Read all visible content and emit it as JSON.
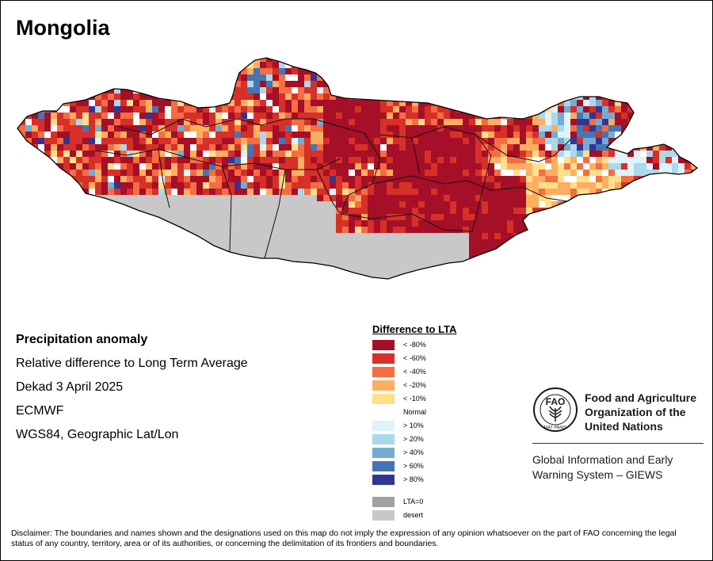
{
  "title": "Mongolia",
  "info": {
    "heading": "Precipitation anomaly",
    "line1": "Relative difference to Long Term Average",
    "line2": "Dekad 3 April 2025",
    "line3": "ECMWF",
    "line4": "WGS84, Geographic Lat/Lon"
  },
  "legend": {
    "title": "Difference to LTA",
    "items": [
      {
        "label": "< -80%",
        "color": "#a50f27"
      },
      {
        "label": "< -60%",
        "color": "#d73028"
      },
      {
        "label": "< -40%",
        "color": "#f46d43"
      },
      {
        "label": "< -20%",
        "color": "#fdae61"
      },
      {
        "label": "< -10%",
        "color": "#fee08b"
      },
      {
        "label": "Normal",
        "color": "#ffffff"
      },
      {
        "label": "> 10%",
        "color": "#e0f3f8"
      },
      {
        "label": "> 20%",
        "color": "#abd9e9"
      },
      {
        "label": "> 40%",
        "color": "#74add1"
      },
      {
        "label": "> 60%",
        "color": "#4575b4"
      },
      {
        "label": "> 80%",
        "color": "#313695"
      }
    ],
    "extra": [
      {
        "label": "LTA=0",
        "color": "#a0a0a0"
      },
      {
        "label": "desert",
        "color": "#c8c8c8"
      }
    ]
  },
  "fao": {
    "logo_text": "FAO",
    "motto": "FIAT PANIS",
    "name_line1": "Food and Agriculture",
    "name_line2": "Organization of the",
    "name_line3": "United Nations",
    "giews_line1": "Global Information and Early",
    "giews_line2": "Warning System – GIEWS"
  },
  "disclaimer": "Disclaimer: The boundaries and names shown and the designations used on this map do not imply the expression of any opinion whatsoever on the part of FAO concerning the legal status of any country, territory, area or of its authorities, or concerning the delimitation of its frontiers and boundaries."
}
